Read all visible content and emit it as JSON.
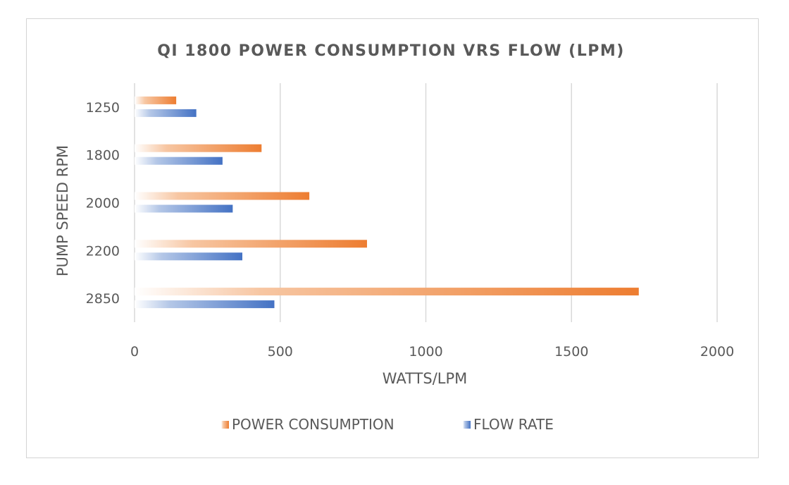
{
  "chart_data": {
    "type": "bar",
    "orientation": "horizontal",
    "title": "QI 1800 POWER CONSUMPTION VRS FLOW (LPM)",
    "xlabel": "WATTS/LPM",
    "ylabel": "PUMP SPEED RPM",
    "categories": [
      "1250",
      "1800",
      "2000",
      "2200",
      "2850"
    ],
    "series": [
      {
        "name": "POWER CONSUMPTION",
        "color": "#ed7d31",
        "values": [
          143,
          436,
          600,
          798,
          1731
        ]
      },
      {
        "name": "FLOW RATE",
        "color": "#4472c4",
        "values": [
          212,
          302,
          337,
          370,
          480
        ]
      }
    ],
    "xlim": [
      0,
      2000
    ],
    "xticks": [
      "0",
      "500",
      "1000",
      "1500",
      "2000"
    ],
    "grid": "vertical",
    "legend": "bottom"
  }
}
